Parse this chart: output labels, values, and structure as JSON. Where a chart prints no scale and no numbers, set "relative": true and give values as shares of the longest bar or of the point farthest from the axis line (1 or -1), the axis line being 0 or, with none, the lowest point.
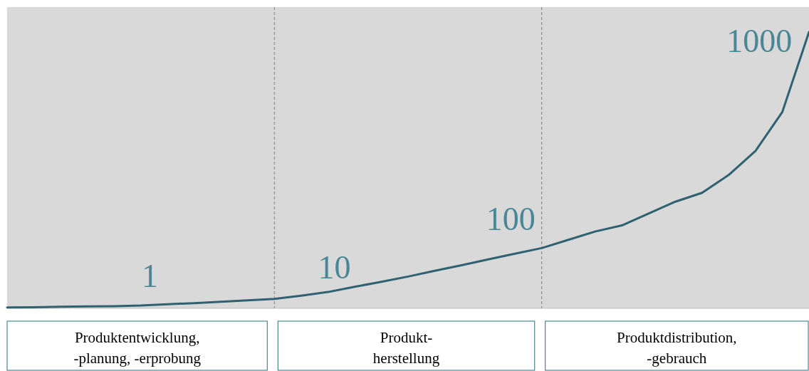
{
  "chart_data": {
    "type": "line",
    "relative": true,
    "line_style": "solid",
    "categories": [
      null,
      null,
      null,
      null,
      null,
      null,
      null,
      null,
      null,
      null,
      null,
      null,
      null,
      null,
      null,
      null,
      null,
      null,
      null,
      null,
      null,
      null,
      null,
      null,
      null,
      null,
      null,
      null,
      null,
      null,
      null
    ],
    "series": [
      {
        "color": "#2f6170",
        "values": [
          0.003,
          0.004,
          0.006,
          0.007,
          0.008,
          0.01,
          0.015,
          0.019,
          0.024,
          0.029,
          0.034,
          0.046,
          0.059,
          0.078,
          0.096,
          0.115,
          0.136,
          0.156,
          0.177,
          0.198,
          0.218,
          0.248,
          0.278,
          0.3,
          0.343,
          0.386,
          0.418,
          0.483,
          0.57,
          0.71,
          1.0
        ]
      }
    ],
    "annotations": [
      "1",
      "10",
      "100",
      "1000",
      "Produktentwicklung,\n-planung, -erprobung",
      "Produkt-\nherstellung",
      "Produktdistribution,\n-gebrauch"
    ]
  }
}
